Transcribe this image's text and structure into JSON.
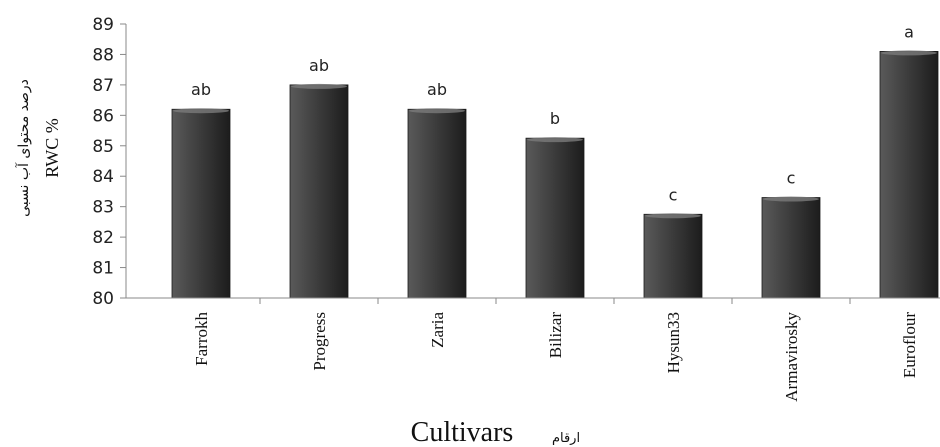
{
  "chart_data": {
    "type": "bar",
    "categories": [
      "Farrokh",
      "Progress",
      "Zaria",
      "Bilizar",
      "Hysun33",
      "Armavirosky",
      "Euroflour"
    ],
    "values": [
      86.2,
      87.0,
      86.2,
      85.25,
      82.75,
      83.3,
      88.1
    ],
    "data_labels": [
      "ab",
      "ab",
      "ab",
      "b",
      "c",
      "c",
      "a"
    ],
    "xlabel": "Cultivars",
    "xlabel_alt": "ارقام",
    "ylabel": "RWC %",
    "ylabel_alt": "درصد محتوای آب نسبی",
    "ylim": [
      80,
      89
    ],
    "yticks": [
      "80",
      "81",
      "82",
      "83",
      "84",
      "85",
      "86",
      "87",
      "88",
      "89"
    ],
    "grid": false,
    "bar_color": "#3a3a3a"
  }
}
